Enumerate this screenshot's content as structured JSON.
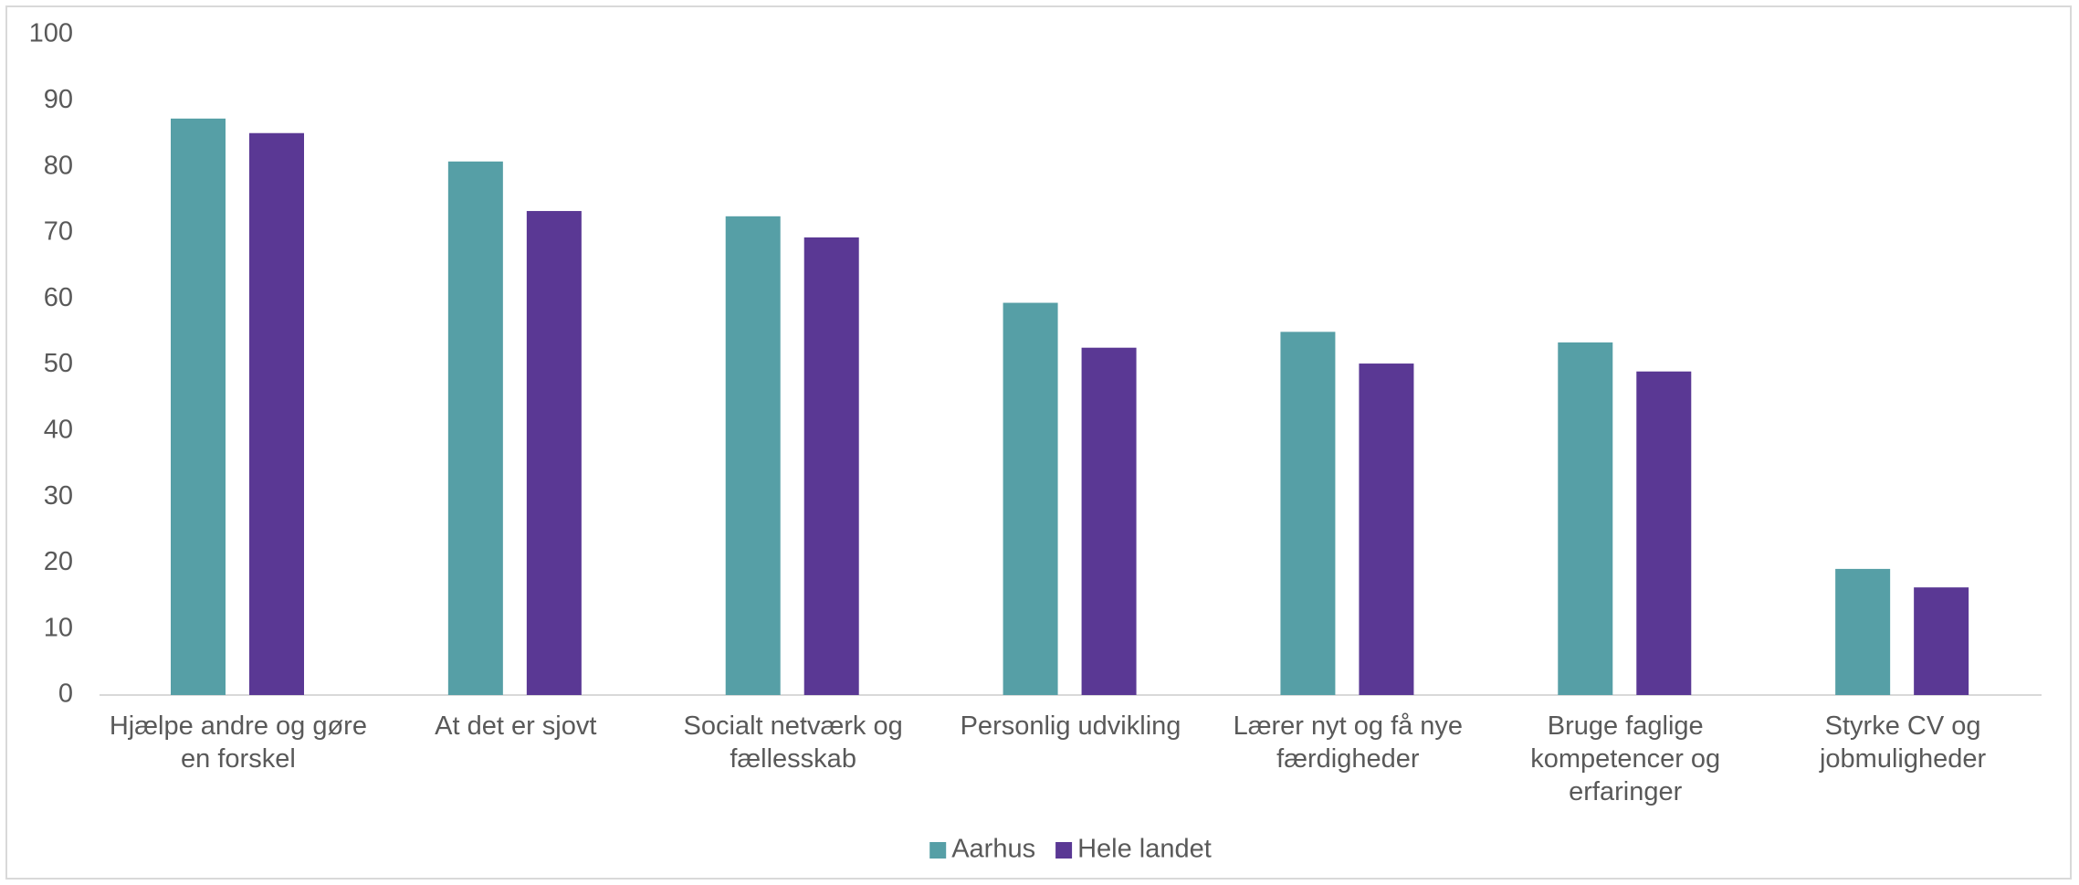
{
  "chart_data": {
    "type": "bar",
    "categories": [
      "Hjælpe andre og gøre en forskel",
      "At det er sjovt",
      "Socialt netværk og fællesskab",
      "Personlig udvikling",
      "Lærer nyt og få nye færdigheder",
      "Bruge faglige kompetencer og erfaringer",
      "Styrke CV og jobmuligheder"
    ],
    "series": [
      {
        "name": "Aarhus",
        "color": "#569fa6",
        "values": [
          87.3,
          80.8,
          72.5,
          59.4,
          55.0,
          53.4,
          19.1
        ]
      },
      {
        "name": "Hele landet",
        "color": "#5a3894",
        "values": [
          85.1,
          73.3,
          69.3,
          52.6,
          50.2,
          49.0,
          16.3
        ]
      }
    ],
    "ylim": [
      0,
      100
    ],
    "yticks": [
      0,
      10,
      20,
      30,
      40,
      50,
      60,
      70,
      80,
      90,
      100
    ],
    "grid": false,
    "legend": "bottom"
  }
}
